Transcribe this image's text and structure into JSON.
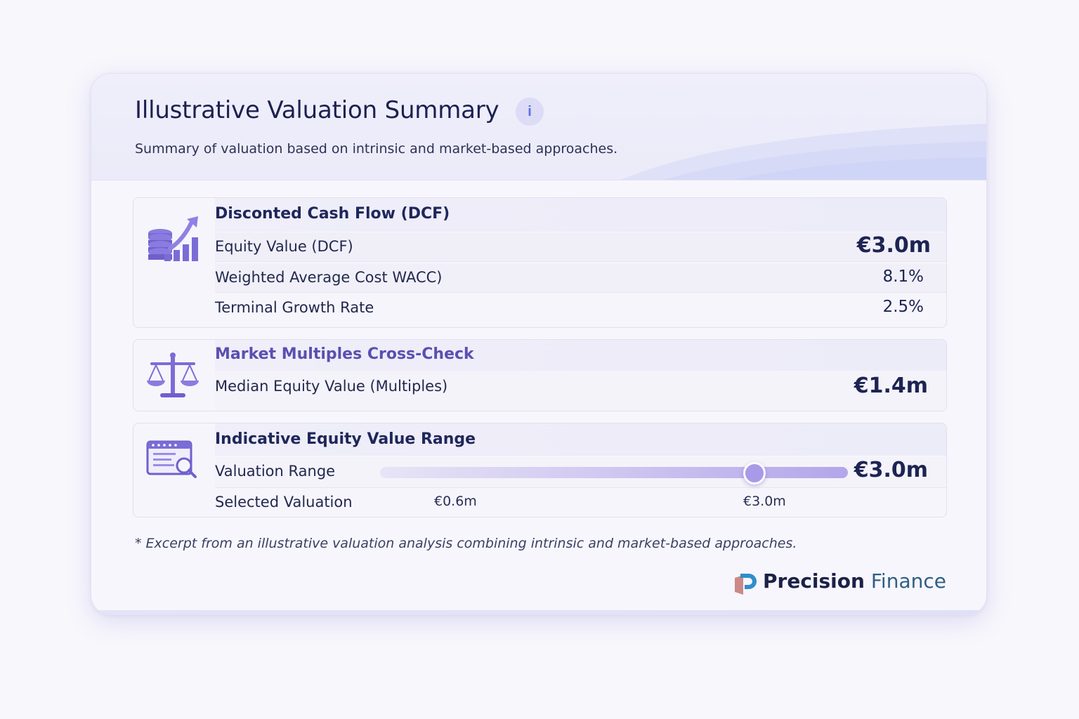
{
  "header": {
    "title": "Illustrative Valuation Summary",
    "info_glyph": "i",
    "subtitle": "Summary of valuation based on intrinsic and market-based approaches."
  },
  "dcf": {
    "icon": "coins-growth-chart-icon",
    "title": "Disconted Cash Flow (DCF)",
    "rows": [
      {
        "label": "Equity Value (DCF)",
        "value": "€3.0m"
      },
      {
        "label": "Weighted Average Cost WACC)",
        "value": "8.1%"
      },
      {
        "label": "Terminal Growth Rate",
        "value": "2.5%"
      }
    ]
  },
  "multiples": {
    "icon": "balance-scale-icon",
    "title": "Market Multiples Cross-Check",
    "rows": [
      {
        "label": "Median Equity Value (Multiples)",
        "value": "€1.4m"
      }
    ]
  },
  "range": {
    "icon": "document-search-icon",
    "title": "Indicative Equity Value Range",
    "range_label": "Valuation Range",
    "range_value": "€3.0m",
    "selected_label": "Selected Valuation",
    "low_label": "€0.6m",
    "high_label": "€3.0m",
    "slider_position": 0.8
  },
  "footnote": "* Excerpt from an illustrative valuation analysis combining intrinsic and market-based approaches.",
  "brand": {
    "name_bold": "Precision",
    "name_light": "Finance"
  },
  "colors": {
    "accent_purple": "#7b6cd6",
    "navy_text": "#1c2147",
    "brand_teal": "#2f5e84"
  }
}
